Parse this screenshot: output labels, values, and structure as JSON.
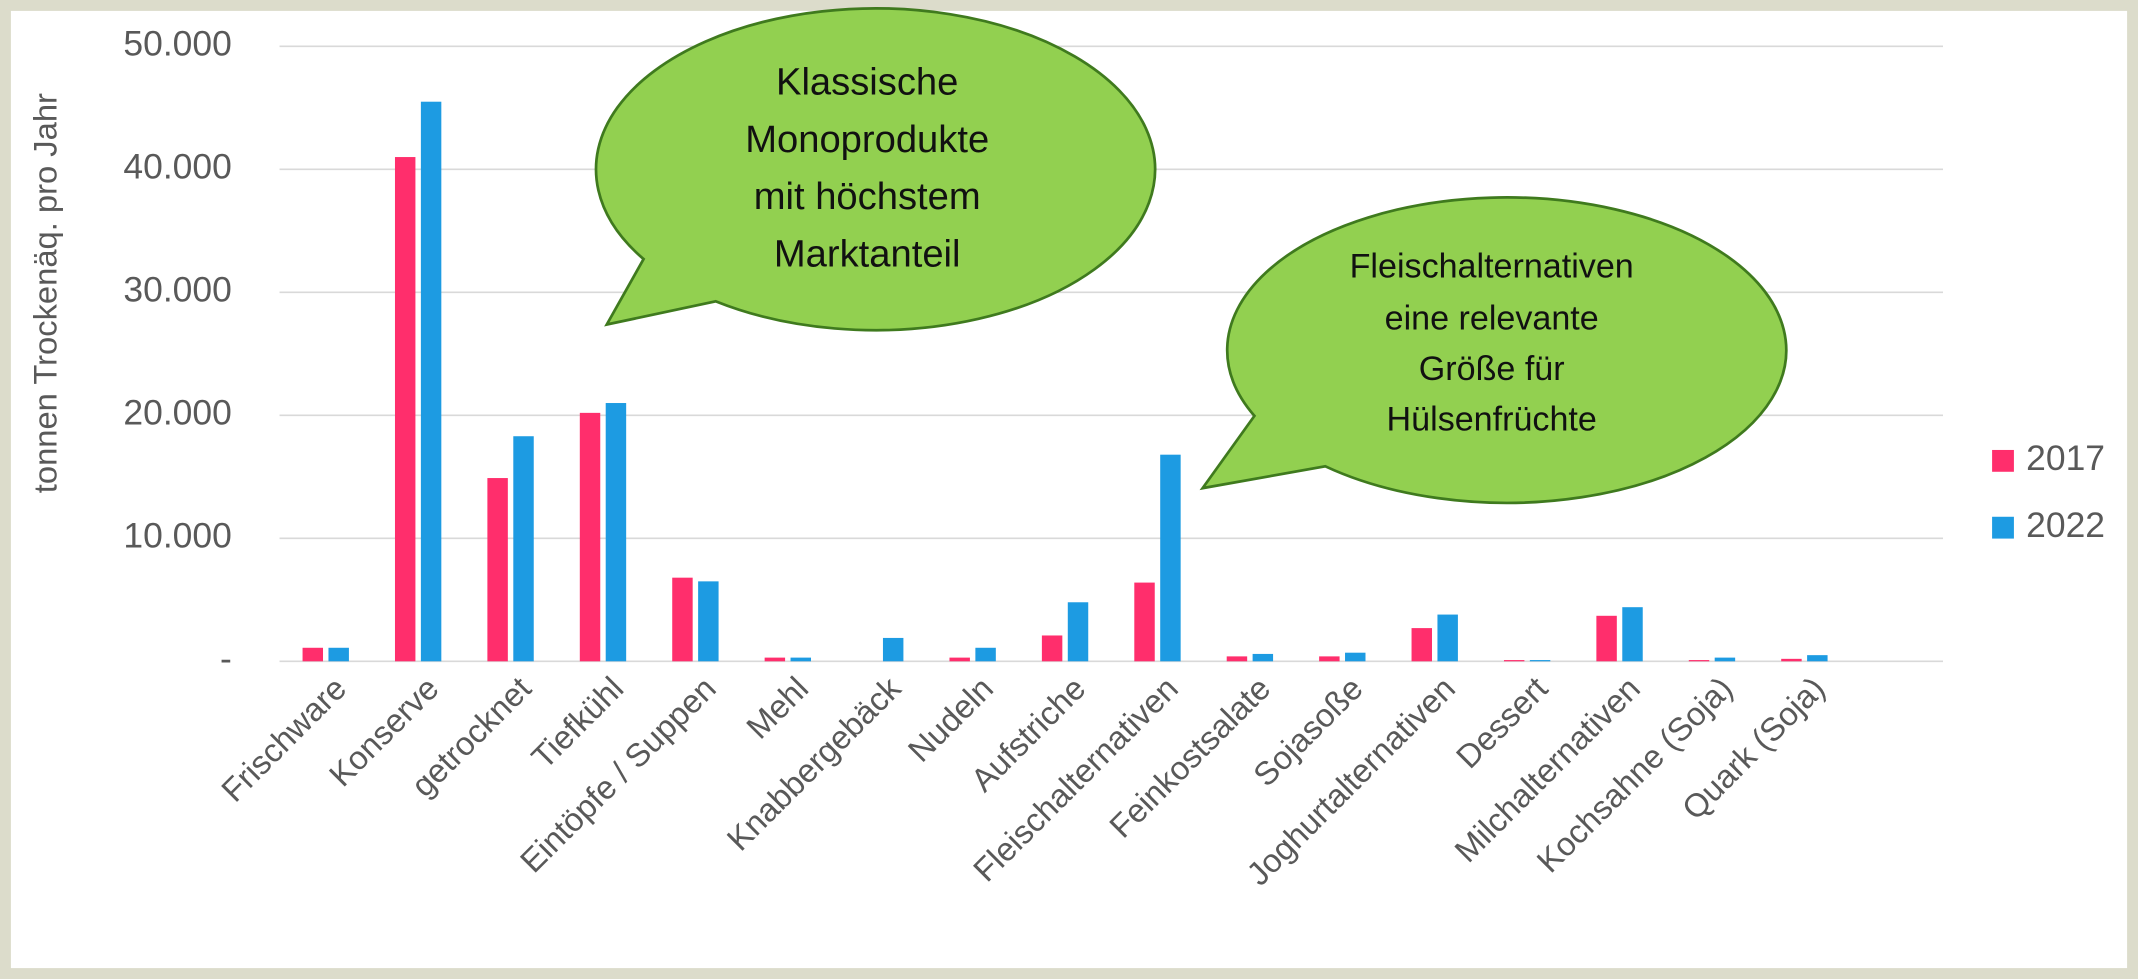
{
  "chart_data": {
    "type": "bar",
    "y_axis_label": "tonnen Trockenäq. pro Jahr",
    "categories": [
      "Frischware",
      "Konserve",
      "getrocknet",
      "Tiefkühl",
      "Eintöpfe / Suppen",
      "Mehl",
      "Knabbergebäck",
      "Nudeln",
      "Aufstriche",
      "Fleischalternativen",
      "Feinkostsalate",
      "Sojasoße",
      "Joghurtalternativen",
      "Dessert",
      "Milchalternativen",
      "Kochsahne (Soja)",
      "Quark (Soja)",
      null
    ],
    "series": [
      {
        "name": "2017",
        "color": "#ff2e6c",
        "values": [
          1100,
          41000,
          14900,
          20200,
          6800,
          300,
          0,
          300,
          2100,
          6400,
          400,
          400,
          2700,
          100,
          3700,
          100,
          200,
          null
        ]
      },
      {
        "name": "2022",
        "color": "#1d9be2",
        "values": [
          1100,
          45500,
          18300,
          21000,
          6500,
          300,
          1900,
          1100,
          4800,
          16800,
          600,
          700,
          3800,
          100,
          4400,
          300,
          500,
          null
        ]
      }
    ],
    "ylim": [
      0,
      50000
    ],
    "yticks": [
      {
        "value": 0,
        "label": "-"
      },
      {
        "value": 10000,
        "label": "10.000"
      },
      {
        "value": 20000,
        "label": "20.000"
      },
      {
        "value": 30000,
        "label": "30.000"
      },
      {
        "value": 40000,
        "label": "40.000"
      },
      {
        "value": 50000,
        "label": "50.000"
      }
    ],
    "grid": true,
    "legend": "right",
    "annotations": [
      {
        "lines": [
          "Klassische",
          "Monoprodukte",
          "mit höchstem",
          "Marktanteil"
        ]
      },
      {
        "lines": [
          "Fleischalternativen",
          "eine relevante",
          "Größe für",
          "Hülsenfrüchte"
        ]
      }
    ]
  }
}
